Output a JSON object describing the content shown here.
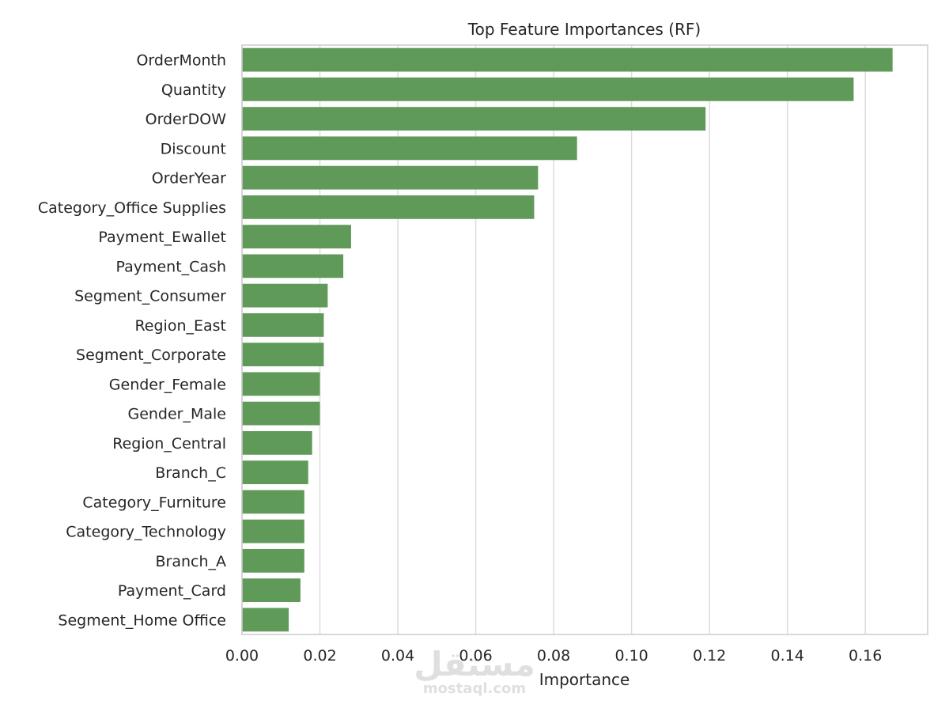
{
  "chart_data": {
    "type": "bar",
    "orientation": "horizontal",
    "title": "Top Feature Importances (RF)",
    "xlabel": "Importance",
    "ylabel": "",
    "xlim": [
      0,
      0.176
    ],
    "xticks": [
      0.0,
      0.02,
      0.04,
      0.06,
      0.08,
      0.1,
      0.12,
      0.14,
      0.16
    ],
    "xtick_labels": [
      "0.00",
      "0.02",
      "0.04",
      "0.06",
      "0.08",
      "0.10",
      "0.12",
      "0.14",
      "0.16"
    ],
    "grid": "vertical",
    "bar_color": "#5f9a59",
    "categories": [
      "OrderMonth",
      "Quantity",
      "OrderDOW",
      "Discount",
      "OrderYear",
      "Category_Office Supplies",
      "Payment_Ewallet",
      "Payment_Cash",
      "Segment_Consumer",
      "Region_East",
      "Segment_Corporate",
      "Gender_Female",
      "Gender_Male",
      "Region_Central",
      "Branch_C",
      "Category_Furniture",
      "Category_Technology",
      "Branch_A",
      "Payment_Card",
      "Segment_Home Office"
    ],
    "values": [
      0.167,
      0.157,
      0.119,
      0.086,
      0.076,
      0.075,
      0.028,
      0.026,
      0.022,
      0.021,
      0.021,
      0.02,
      0.02,
      0.018,
      0.017,
      0.016,
      0.016,
      0.016,
      0.015,
      0.012
    ]
  },
  "watermark": {
    "logo_text": "مستقل",
    "site_text": "mostaql.com"
  }
}
